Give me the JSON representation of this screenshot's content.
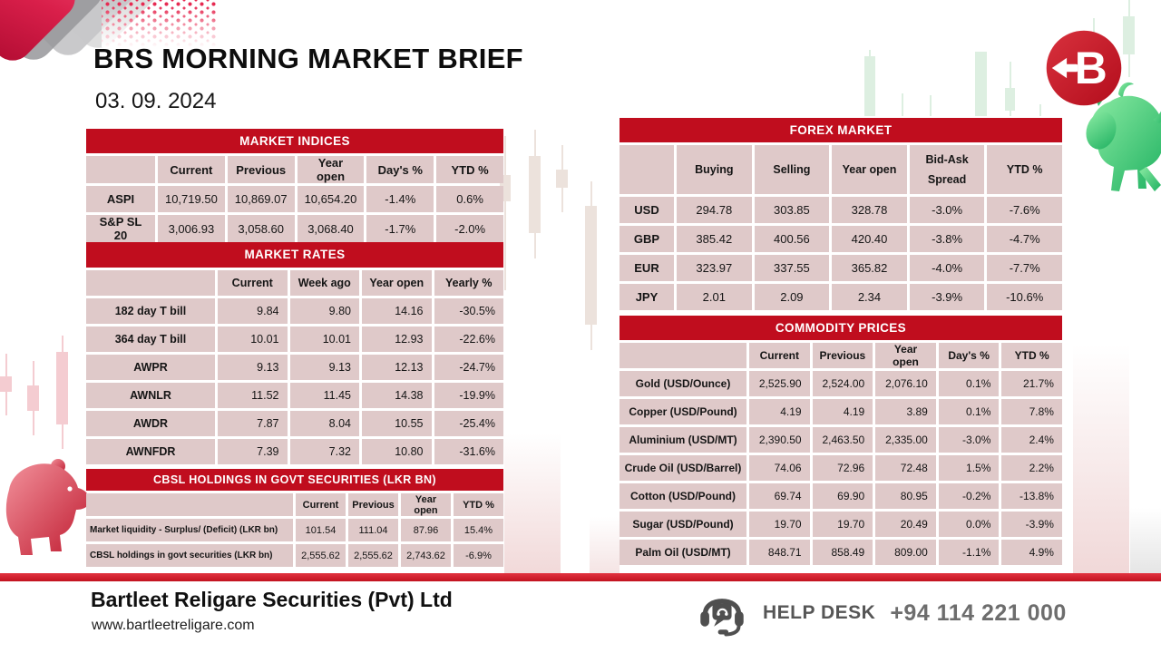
{
  "header": {
    "title": "BRS MORNING MARKET BRIEF",
    "date": "03. 09. 2024",
    "logo_icon": "brs-arrow-b-logo",
    "logo_letter": "B"
  },
  "tables": {
    "market_indices": {
      "title": "MARKET INDICES",
      "headers": [
        "",
        "Current",
        "Previous",
        "Year open",
        "Day's %",
        "YTD %"
      ],
      "rows": [
        [
          "ASPI",
          "10,719.50",
          "10,869.07",
          "10,654.20",
          "-1.4%",
          "0.6%"
        ],
        [
          "S&P SL 20",
          "3,006.93",
          "3,058.60",
          "3,068.40",
          "-1.7%",
          "-2.0%"
        ]
      ]
    },
    "market_rates": {
      "title": "MARKET RATES",
      "headers": [
        "",
        "Current",
        "Week ago",
        "Year open",
        "Yearly %"
      ],
      "rows": [
        [
          "182 day T bill",
          "9.84",
          "9.80",
          "14.16",
          "-30.5%"
        ],
        [
          "364 day T bill",
          "10.01",
          "10.01",
          "12.93",
          "-22.6%"
        ],
        [
          "AWPR",
          "9.13",
          "9.13",
          "12.13",
          "-24.7%"
        ],
        [
          "AWNLR",
          "11.52",
          "11.45",
          "14.38",
          "-19.9%"
        ],
        [
          "AWDR",
          "7.87",
          "8.04",
          "10.55",
          "-25.4%"
        ],
        [
          "AWNFDR",
          "7.39",
          "7.32",
          "10.80",
          "-31.6%"
        ]
      ]
    },
    "cbsl": {
      "title": "CBSL HOLDINGS IN GOVT SECURITIES (LKR BN)",
      "headers": [
        "",
        "Current",
        "Previous",
        "Year open",
        "YTD %"
      ],
      "rows": [
        [
          "Market liquidity - Surplus/ (Deficit) (LKR bn)",
          "101.54",
          "111.04",
          "87.96",
          "15.4%"
        ],
        [
          "CBSL holdings in govt securities (LKR bn)",
          "2,555.62",
          "2,555.62",
          "2,743.62",
          "-6.9%"
        ]
      ]
    },
    "forex": {
      "title": "FOREX MARKET",
      "headers": [
        "",
        "Buying",
        "Selling",
        "Year open",
        "Bid-Ask Spread",
        "YTD %"
      ],
      "rows": [
        [
          "USD",
          "294.78",
          "303.85",
          "328.78",
          "-3.0%",
          "-7.6%"
        ],
        [
          "GBP",
          "385.42",
          "400.56",
          "420.40",
          "-3.8%",
          "-4.7%"
        ],
        [
          "EUR",
          "323.97",
          "337.55",
          "365.82",
          "-4.0%",
          "-7.7%"
        ],
        [
          "JPY",
          "2.01",
          "2.09",
          "2.34",
          "-3.9%",
          "-10.6%"
        ]
      ]
    },
    "commodities": {
      "title": "COMMODITY PRICES",
      "headers": [
        "",
        "Current",
        "Previous",
        "Year open",
        "Day's %",
        "YTD %"
      ],
      "rows": [
        [
          "Gold (USD/Ounce)",
          "2,525.90",
          "2,524.00",
          "2,076.10",
          "0.1%",
          "21.7%"
        ],
        [
          "Copper (USD/Pound)",
          "4.19",
          "4.19",
          "3.89",
          "0.1%",
          "7.8%"
        ],
        [
          "Aluminium (USD/MT)",
          "2,390.50",
          "2,463.50",
          "2,335.00",
          "-3.0%",
          "2.4%"
        ],
        [
          "Crude Oil (USD/Barrel)",
          "74.06",
          "72.96",
          "72.48",
          "1.5%",
          "2.2%"
        ],
        [
          "Cotton (USD/Pound)",
          "69.74",
          "69.90",
          "80.95",
          "-0.2%",
          "-13.8%"
        ],
        [
          "Sugar (USD/Pound)",
          "19.70",
          "19.70",
          "20.49",
          "0.0%",
          "-3.9%"
        ],
        [
          "Palm Oil (USD/MT)",
          "848.71",
          "858.49",
          "809.00",
          "-1.1%",
          "4.9%"
        ]
      ]
    }
  },
  "footer": {
    "company": "Bartleet Religare Securities (Pvt) Ltd",
    "website": "www.bartleetreligare.com",
    "help_label": "HELP DESK",
    "phone": "+94 114 221 000",
    "helpdesk_icon": "headset-chat-icon"
  },
  "decor": {
    "bull_icon": "bull-icon",
    "bear_icon": "bear-icon",
    "candlesticks": "candlestick-decoration"
  },
  "colors": {
    "accent_red": "#c00d1e",
    "cell_pink": "#dfc9c9",
    "strip_red": "#d21f2c",
    "bull_green": "#3fcf78",
    "bear_red": "#d63a4e",
    "helpdesk_gray": "#565656"
  }
}
